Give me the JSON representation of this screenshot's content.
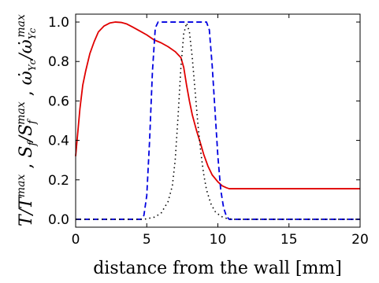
{
  "chart_data": {
    "type": "line",
    "xlabel": "distance from the wall [mm]",
    "ylabel": "T/T^max , S_f/S_f^max , ω̇_Yc/ω̇_Yc^max",
    "ylabel_parts": {
      "t": "T/T",
      "t_sup": "max",
      "sep1": " , ",
      "s": "S",
      "s_sub": "f",
      "s_slash": "/S",
      "s2_sub": "f",
      "s2_sup": "max",
      "sep2": " , ",
      "w": "ω̇",
      "w_sub": "Yc",
      "w_slash": "/ω̇",
      "w2_sub": "Yc",
      "w2_sup": "max"
    },
    "xlim": [
      0,
      20
    ],
    "ylim": [
      -0.04,
      1.04
    ],
    "xticks": [
      0,
      5,
      10,
      15,
      20
    ],
    "xtick_labels": [
      "0",
      "5",
      "10",
      "15",
      "20"
    ],
    "yticks": [
      0.0,
      0.2,
      0.4,
      0.6,
      0.8,
      1.0
    ],
    "ytick_labels": [
      "0.0",
      "0.2",
      "0.4",
      "0.6",
      "0.8",
      "1.0"
    ],
    "grid": false,
    "series": [
      {
        "style": "solid",
        "color": "#e00000",
        "x": [
          0,
          0.1,
          0.3,
          0.5,
          0.7,
          1.0,
          1.3,
          1.6,
          2.0,
          2.4,
          2.8,
          3.2,
          3.6,
          4.0,
          4.5,
          5.0,
          5.5,
          6.0,
          6.5,
          7.0,
          7.4,
          7.6,
          7.8,
          8.0,
          8.2,
          8.5,
          8.8,
          9.0,
          9.3,
          9.6,
          10.0,
          10.3,
          10.6,
          10.8,
          11.0,
          12,
          14,
          16,
          18,
          20
        ],
        "y": [
          0.32,
          0.4,
          0.56,
          0.68,
          0.75,
          0.84,
          0.9,
          0.95,
          0.98,
          0.995,
          1.0,
          0.998,
          0.99,
          0.975,
          0.955,
          0.935,
          0.91,
          0.895,
          0.875,
          0.85,
          0.82,
          0.77,
          0.68,
          0.6,
          0.53,
          0.45,
          0.38,
          0.33,
          0.27,
          0.225,
          0.19,
          0.17,
          0.16,
          0.155,
          0.155,
          0.155,
          0.155,
          0.155,
          0.155,
          0.155
        ]
      },
      {
        "style": "dashed",
        "color": "#0000e0",
        "x": [
          0,
          4.6,
          4.8,
          5.0,
          5.2,
          5.4,
          5.6,
          5.8,
          9.2,
          9.4,
          9.6,
          9.8,
          10.0,
          10.2,
          10.4,
          10.6,
          10.8,
          20
        ],
        "y": [
          0,
          0,
          0.02,
          0.12,
          0.4,
          0.75,
          0.97,
          1.0,
          1.0,
          0.96,
          0.78,
          0.55,
          0.32,
          0.15,
          0.06,
          0.015,
          0,
          0
        ]
      },
      {
        "style": "dotted",
        "color": "#000000",
        "x": [
          0,
          4.8,
          5.5,
          6.0,
          6.5,
          6.8,
          7.0,
          7.2,
          7.4,
          7.6,
          7.8,
          8.0,
          8.2,
          8.4,
          8.6,
          8.8,
          9.0,
          9.2,
          9.5,
          9.8,
          10.2,
          10.6,
          11.0,
          20
        ],
        "y": [
          0,
          0,
          0.01,
          0.03,
          0.09,
          0.17,
          0.3,
          0.52,
          0.77,
          0.94,
          0.995,
          0.95,
          0.82,
          0.65,
          0.48,
          0.34,
          0.23,
          0.15,
          0.08,
          0.04,
          0.015,
          0.005,
          0,
          0
        ]
      }
    ]
  }
}
